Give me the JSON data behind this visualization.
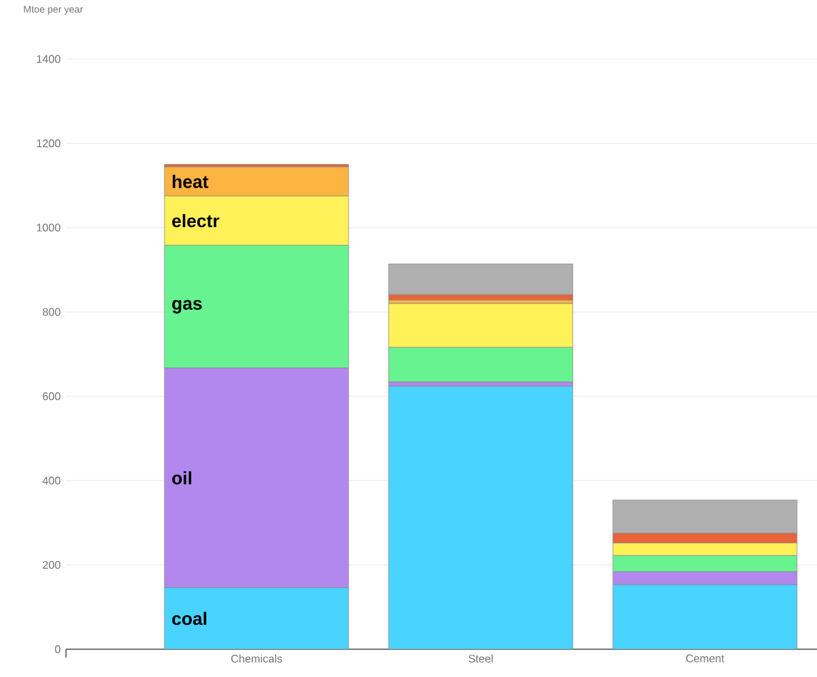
{
  "chart_data": {
    "type": "bar",
    "stacked": true,
    "ylabel": "Mtoe per year",
    "categories": [
      "Chemicals",
      "Steel",
      "Cement"
    ],
    "series": [
      {
        "name": "coal",
        "color": "#49d3ff",
        "values": [
          146,
          624,
          153
        ]
      },
      {
        "name": "oil",
        "color": "#b287ee",
        "values": [
          521,
          10,
          31
        ]
      },
      {
        "name": "gas",
        "color": "#67f490",
        "values": [
          291,
          82,
          38
        ]
      },
      {
        "name": "electr",
        "color": "#fff157",
        "values": [
          117,
          104,
          30
        ]
      },
      {
        "name": "heat",
        "color": "#fdb441",
        "values": [
          69,
          8,
          0
        ]
      },
      {
        "color": "#e8643a",
        "values": [
          6,
          13,
          23
        ]
      },
      {
        "color": "#b0b0b0",
        "values": [
          0,
          73,
          79
        ]
      }
    ],
    "ylim": [
      0,
      1400
    ],
    "yticks": [
      0,
      200,
      400,
      600,
      800,
      1000,
      1200,
      1400
    ],
    "grid": "y",
    "legend": false
  }
}
